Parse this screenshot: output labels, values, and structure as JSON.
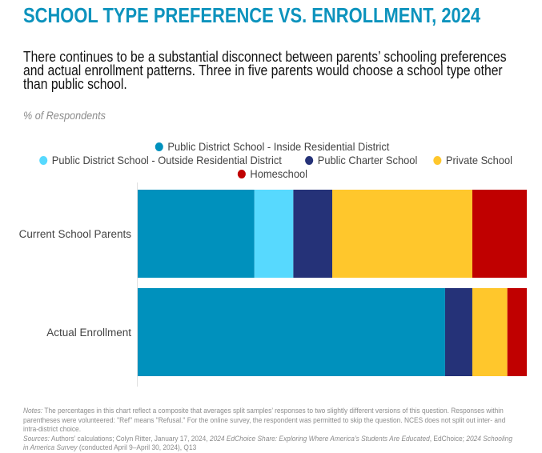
{
  "header": {
    "title": "SCHOOL TYPE PREFERENCE VS. ENROLLMENT, 2024",
    "subtitle": "There continues to be a substantial disconnect between parents’ schooling preferences and actual enrollment patterns. Three in five parents would choose a school type other than public school.",
    "unit_label": "% of Respondents"
  },
  "chart_data": {
    "type": "bar",
    "orientation": "horizontal",
    "stacked": true,
    "title": "SCHOOL TYPE PREFERENCE VS. ENROLLMENT, 2024",
    "ylabel": "% of Respondents",
    "xlabel": "",
    "xlim": [
      0,
      100
    ],
    "grid": false,
    "legend_position": "top-center",
    "categories": [
      "Current School Parents",
      "Actual Enrollment"
    ],
    "series": [
      {
        "name": "Public District School - Inside Residential District",
        "color": "#0091bd",
        "values": [
          30,
          79
        ]
      },
      {
        "name": "Public District School - Outside Residential District",
        "color": "#57d9fe",
        "values": [
          10,
          0
        ]
      },
      {
        "name": "Public Charter School",
        "color": "#253278",
        "values": [
          10,
          7
        ]
      },
      {
        "name": "Private School",
        "color": "#ffc72c",
        "values": [
          36,
          9
        ]
      },
      {
        "name": "Homeschool",
        "color": "#c00000",
        "values": [
          14,
          5
        ]
      }
    ]
  },
  "legend": {
    "rows": [
      [
        0
      ],
      [
        1,
        2,
        3
      ],
      [
        4
      ]
    ]
  },
  "notes": {
    "notes_label": "Notes:",
    "notes_text": " The percentages in this chart reflect a composite that averages split samples’ responses to two slightly different versions of this question. Responses within parentheses were volunteered: \"Ref\" means \"Refusal.\" For the online survey, the respondent was permitted to skip the question. NCES does not split out inter- and intra-district choice.",
    "sources_label": "Sources:",
    "sources_text_1": " Authors’ calculations; Colyn Ritter, January 17, 2024, ",
    "sources_italic_1": "2024 EdChoice Share: Exploring Where America’s Students Are Educated",
    "sources_text_2": ", EdChoice; ",
    "sources_italic_2": "2024 Schooling in America Survey",
    "sources_text_3": " (conducted April 9–April 30, 2024), Q13"
  }
}
